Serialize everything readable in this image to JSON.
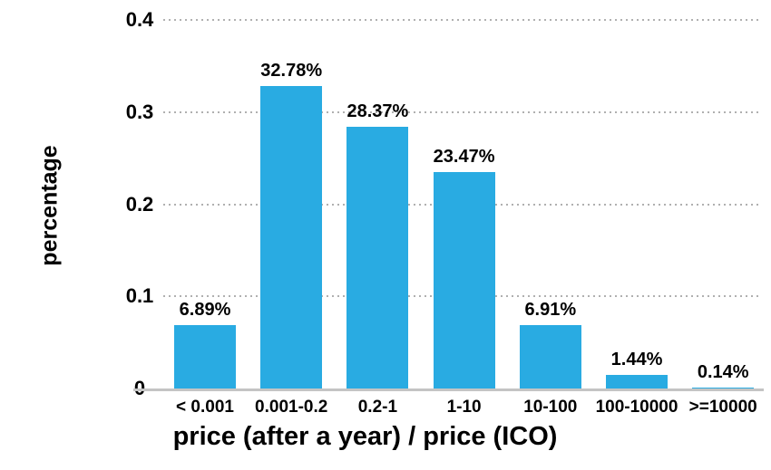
{
  "chart_data": {
    "type": "bar",
    "title": "",
    "xlabel": "price (after a year) / price (ICO)",
    "ylabel": "percentage",
    "categories": [
      "< 0.001",
      "0.001-0.2",
      "0.2-1",
      "1-10",
      "10-100",
      "100-10000",
      ">=10000"
    ],
    "values": [
      0.0689,
      0.3278,
      0.2837,
      0.2347,
      0.0691,
      0.0144,
      0.0014
    ],
    "bar_labels": [
      "6.89%",
      "32.78%",
      "28.37%",
      "23.47%",
      "6.91%",
      "1.44%",
      "0.14%"
    ],
    "ylim": [
      0,
      0.4
    ],
    "yticks": [
      {
        "value": 0,
        "label": "0"
      },
      {
        "value": 0.1,
        "label": "0.1"
      },
      {
        "value": 0.2,
        "label": "0.2"
      },
      {
        "value": 0.3,
        "label": "0.3"
      },
      {
        "value": 0.4,
        "label": "0.4"
      }
    ],
    "grid": "horizontal-dotted",
    "legend": "none",
    "colors": {
      "bar": "#29ABE2",
      "text": "#000000",
      "gridline": "#b0b0b0",
      "axis_line": "#c4c4c4",
      "background": "#ffffff"
    }
  }
}
